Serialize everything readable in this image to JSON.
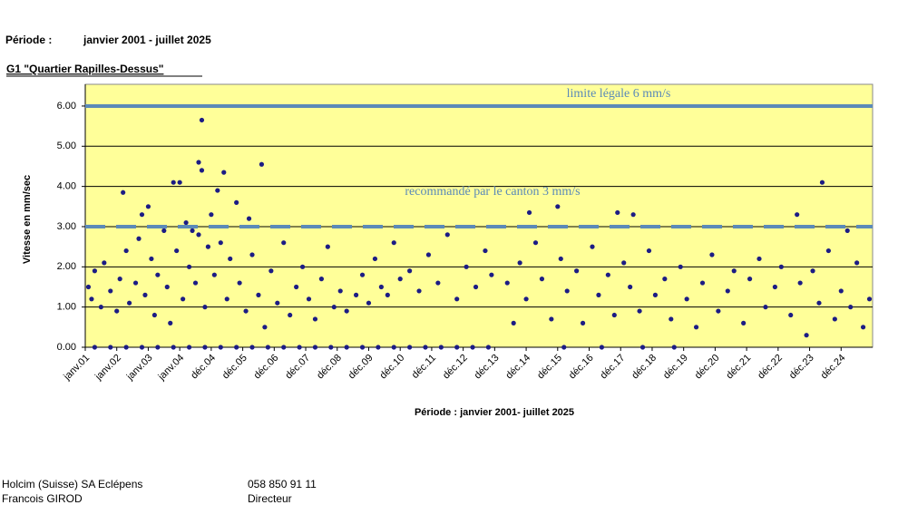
{
  "header": {
    "period_label": "Période :",
    "period_value": "janvier 2001 - juillet 2025",
    "station": "G1 \"Quartier Rapilles-Dessus\""
  },
  "chart_data": {
    "type": "scatter",
    "y_label": "Vitesse en mm/sec",
    "x_label": "Période : janvier 2001- juillet 2025",
    "xlim": [
      0,
      25
    ],
    "xticks": [
      {
        "value": 0,
        "label": "janv.01"
      },
      {
        "value": 1,
        "label": "janv.02"
      },
      {
        "value": 2,
        "label": "janv.03"
      },
      {
        "value": 3,
        "label": "janv.04"
      },
      {
        "value": 4,
        "label": "déc.04"
      },
      {
        "value": 5,
        "label": "déc.05"
      },
      {
        "value": 6,
        "label": "déc.06"
      },
      {
        "value": 7,
        "label": "déc.07"
      },
      {
        "value": 8,
        "label": "déc.08"
      },
      {
        "value": 9,
        "label": "déc.09"
      },
      {
        "value": 10,
        "label": "déc.10"
      },
      {
        "value": 11,
        "label": "déc.11"
      },
      {
        "value": 12,
        "label": "déc.12"
      },
      {
        "value": 13,
        "label": "déc.13"
      },
      {
        "value": 14,
        "label": "déc.14"
      },
      {
        "value": 15,
        "label": "déc.15"
      },
      {
        "value": 16,
        "label": "déc.16"
      },
      {
        "value": 17,
        "label": "déc.17"
      },
      {
        "value": 18,
        "label": "déc.18"
      },
      {
        "value": 19,
        "label": "déc.19"
      },
      {
        "value": 20,
        "label": "déc.20"
      },
      {
        "value": 21,
        "label": "déc.21"
      },
      {
        "value": 22,
        "label": "déc.22"
      },
      {
        "value": 23,
        "label": "déc.23"
      },
      {
        "value": 24,
        "label": "déc.24"
      }
    ],
    "ylim": [
      0,
      6.54
    ],
    "yticks": [
      {
        "value": 0,
        "label": "0.00"
      },
      {
        "value": 1,
        "label": "1.00"
      },
      {
        "value": 2,
        "label": "2.00"
      },
      {
        "value": 3,
        "label": "3.00"
      },
      {
        "value": 4,
        "label": "4.00"
      },
      {
        "value": 5,
        "label": "5.00"
      },
      {
        "value": 6,
        "label": "6.00"
      }
    ],
    "grid": true,
    "background": "#ffff99",
    "reference_lines": [
      {
        "value": 6,
        "label": "limite légale 6 mm/s",
        "style": "solid",
        "color": "#5b8ab8"
      },
      {
        "value": 3,
        "label": "recommandé par le canton 3 mm/s",
        "style": "dashed",
        "color": "#5b8ab8"
      }
    ],
    "series": [
      {
        "color": "#1c1c84",
        "x": [
          3.7,
          3.6,
          3.7,
          4.4,
          5.6,
          2.8,
          3.0,
          1.2,
          4.2,
          2.0,
          1.8,
          5.2,
          15.0,
          14.1,
          16.9,
          17.4,
          23.4,
          22.6,
          24.2,
          3.4,
          4.8,
          0.1,
          0.2,
          0.3,
          0.5,
          0.6,
          0.8,
          1.0,
          1.1,
          1.3,
          1.4,
          1.6,
          1.7,
          1.9,
          2.1,
          2.2,
          2.3,
          2.5,
          2.6,
          2.7,
          2.9,
          3.1,
          3.2,
          3.3,
          3.5,
          3.6,
          3.8,
          3.9,
          4.0,
          4.1,
          4.3,
          4.5,
          4.6,
          4.9,
          5.1,
          5.3,
          5.5,
          5.7,
          5.9,
          6.1,
          6.3,
          6.5,
          6.7,
          6.9,
          7.1,
          7.3,
          7.5,
          7.7,
          7.9,
          8.1,
          8.3,
          8.6,
          8.8,
          9.0,
          9.2,
          9.4,
          9.6,
          9.8,
          10.0,
          10.3,
          10.6,
          10.9,
          11.2,
          11.5,
          11.8,
          12.1,
          12.4,
          12.7,
          12.9,
          13.4,
          13.6,
          13.8,
          14.0,
          14.3,
          14.5,
          14.8,
          15.1,
          15.3,
          15.6,
          15.8,
          16.1,
          16.3,
          16.6,
          16.8,
          17.1,
          17.3,
          17.6,
          17.9,
          18.1,
          18.4,
          18.6,
          18.9,
          19.1,
          19.4,
          19.6,
          19.9,
          20.1,
          20.4,
          20.6,
          20.9,
          21.1,
          21.4,
          21.6,
          21.9,
          22.1,
          22.4,
          22.7,
          22.9,
          23.1,
          23.3,
          23.6,
          23.8,
          24.0,
          24.3,
          24.5,
          24.7,
          24.9,
          0.3,
          0.8,
          1.3,
          1.8,
          2.3,
          2.8,
          3.3,
          3.8,
          4.3,
          4.8,
          5.3,
          5.8,
          6.3,
          6.8,
          7.3,
          7.8,
          8.3,
          8.8,
          9.3,
          9.8,
          10.3,
          10.8,
          11.3,
          11.8,
          12.3,
          12.8,
          15.2,
          16.4,
          17.7,
          18.7
        ],
        "values": [
          5.65,
          4.6,
          4.4,
          4.35,
          4.55,
          4.1,
          4.1,
          3.85,
          3.9,
          3.5,
          3.3,
          3.2,
          3.5,
          3.35,
          3.35,
          3.3,
          4.1,
          3.3,
          2.9,
          2.9,
          3.6,
          1.5,
          1.2,
          1.9,
          1.0,
          2.1,
          1.4,
          0.9,
          1.7,
          2.4,
          1.1,
          1.6,
          2.7,
          1.3,
          2.2,
          0.8,
          1.8,
          2.9,
          1.5,
          0.6,
          2.4,
          1.2,
          3.1,
          2.0,
          1.6,
          2.8,
          1.0,
          2.5,
          3.3,
          1.8,
          2.6,
          1.2,
          2.2,
          1.6,
          0.9,
          2.3,
          1.3,
          0.5,
          1.9,
          1.1,
          2.6,
          0.8,
          1.5,
          2.0,
          1.2,
          0.7,
          1.7,
          2.5,
          1.0,
          1.4,
          0.9,
          1.3,
          1.8,
          1.1,
          2.2,
          1.5,
          1.3,
          2.6,
          1.7,
          1.9,
          1.4,
          2.3,
          1.6,
          2.8,
          1.2,
          2.0,
          1.5,
          2.4,
          1.8,
          1.6,
          0.6,
          2.1,
          1.2,
          2.6,
          1.7,
          0.7,
          2.2,
          1.4,
          1.9,
          0.6,
          2.5,
          1.3,
          1.8,
          0.8,
          2.1,
          1.5,
          0.9,
          2.4,
          1.3,
          1.7,
          0.7,
          2.0,
          1.2,
          0.5,
          1.6,
          2.3,
          0.9,
          1.4,
          1.9,
          0.6,
          1.7,
          2.2,
          1.0,
          1.5,
          2.0,
          0.8,
          1.6,
          0.3,
          1.9,
          1.1,
          2.4,
          0.7,
          1.4,
          1.0,
          2.1,
          0.5,
          1.2,
          0,
          0,
          0,
          0,
          0,
          0,
          0,
          0,
          0,
          0,
          0,
          0,
          0,
          0,
          0,
          0,
          0,
          0,
          0,
          0,
          0,
          0,
          0,
          0,
          0,
          0,
          0,
          0,
          0,
          0
        ]
      }
    ]
  },
  "footer": {
    "company": "Holcim (Suisse) SA Eclépens",
    "phone": "058 850 91 11",
    "name": "Francois GIROD",
    "role": "Directeur"
  }
}
